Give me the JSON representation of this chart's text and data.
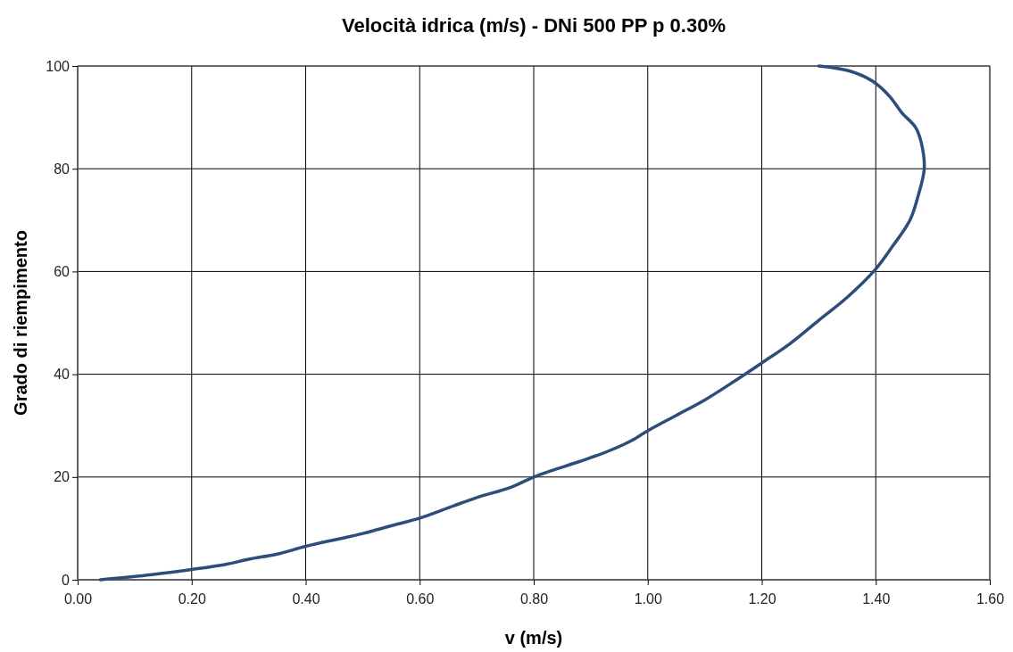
{
  "chart_data": {
    "type": "line",
    "title": "Velocità idrica (m/s) - DNi 500 PP p 0.30%",
    "xlabel": "v (m/s)",
    "ylabel": "Grado di riempimento",
    "series": [
      {
        "color": "#2e4d7b",
        "x": [
          0.04,
          0.13,
          0.2,
          0.26,
          0.3,
          0.35,
          0.4,
          0.46,
          0.5,
          0.55,
          0.6,
          0.65,
          0.7,
          0.76,
          0.8,
          0.83,
          0.88,
          0.93,
          0.97,
          1.0,
          1.05,
          1.1,
          1.15,
          1.2,
          1.25,
          1.3,
          1.35,
          1.4,
          1.43,
          1.46,
          1.475,
          1.485,
          1.48,
          1.47,
          1.445,
          1.425,
          1.395,
          1.355,
          1.3
        ],
        "values": [
          0,
          1,
          2,
          3,
          4,
          5,
          6.5,
          8,
          9,
          10.5,
          12,
          14,
          16,
          18,
          20,
          21.2,
          23,
          25,
          27,
          29,
          32,
          35,
          38.5,
          42.2,
          46,
          50.5,
          55,
          60.5,
          65,
          70,
          75,
          80,
          85,
          88,
          91,
          94,
          97,
          99,
          100
        ]
      }
    ],
    "xlim": [
      0,
      1.6
    ],
    "xticks": [
      {
        "value": 0,
        "label": "0.00"
      },
      {
        "value": 0.2,
        "label": "0.20"
      },
      {
        "value": 0.4,
        "label": "0.40"
      },
      {
        "value": 0.6,
        "label": "0.60"
      },
      {
        "value": 0.8,
        "label": "0.80"
      },
      {
        "value": 1,
        "label": "1.00"
      },
      {
        "value": 1.2,
        "label": "1.20"
      },
      {
        "value": 1.4,
        "label": "1.40"
      },
      {
        "value": 1.6,
        "label": "1.60"
      }
    ],
    "ylim": [
      0,
      100
    ],
    "yticks": [
      0,
      20,
      40,
      60,
      80,
      100
    ],
    "grid": true,
    "marker": "none",
    "line_style": "solid"
  }
}
